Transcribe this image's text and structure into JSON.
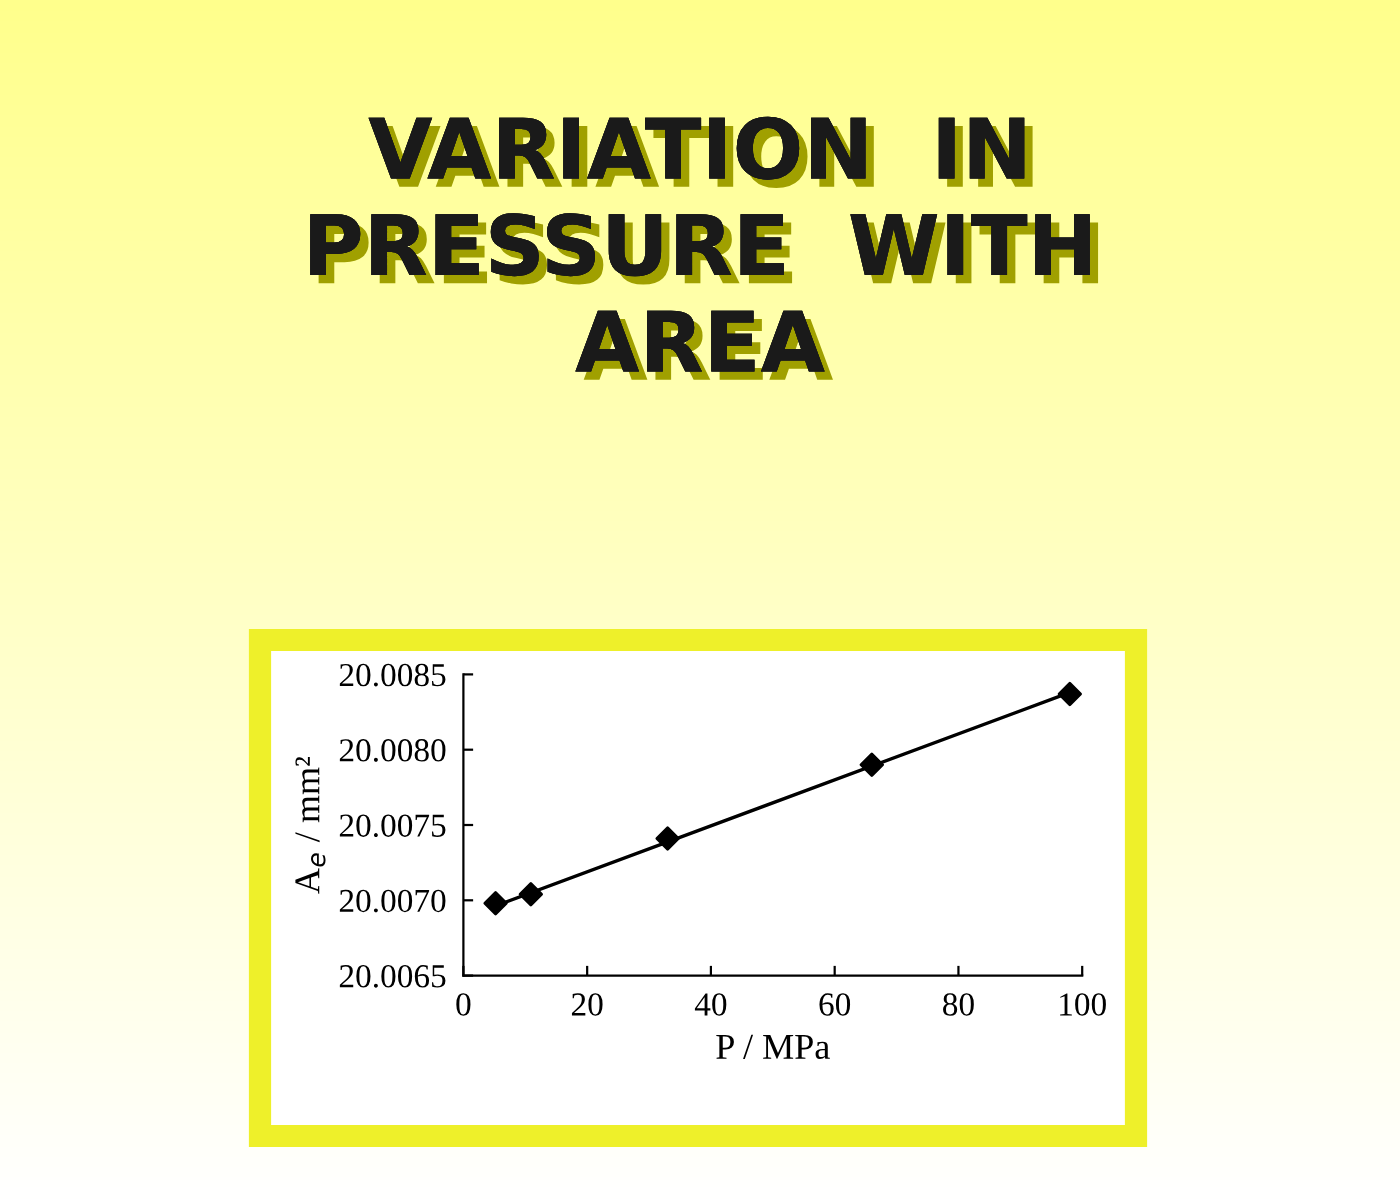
{
  "chart_data": {
    "type": "scatter",
    "title": "VARIATION  IN\nPRESSURE  WITH\nAREA",
    "xlabel": "P / MPa",
    "ylabel": "A$_{e}$ / mm²",
    "series": [
      {
        "color": "#000000",
        "marker": "diamond",
        "x": [
          5.2,
          10.9,
          33,
          66,
          98
        ],
        "values": [
          20.00698,
          20.00704,
          20.00741,
          20.0079,
          20.00837
        ]
      },
      {
        "type": "line",
        "color": "#000000",
        "marker": "none",
        "line_style": "solid",
        "x": [
          5,
          98
        ],
        "values": [
          20.00696,
          20.00838
        ]
      }
    ],
    "xlim": [
      0,
      100
    ],
    "xticks": [
      0,
      20,
      40,
      60,
      80,
      100
    ],
    "ylim": [
      20.0065,
      20.0085
    ],
    "yticks": [
      {
        "value": 20.0065,
        "label": "20.0065"
      },
      {
        "value": 20.007,
        "label": "20.0070"
      },
      {
        "value": 20.0075,
        "label": "20.0075"
      },
      {
        "value": 20.008,
        "label": "20.0080"
      },
      {
        "value": 20.0085,
        "label": "20.0085"
      }
    ],
    "grid": false,
    "legend": false
  }
}
